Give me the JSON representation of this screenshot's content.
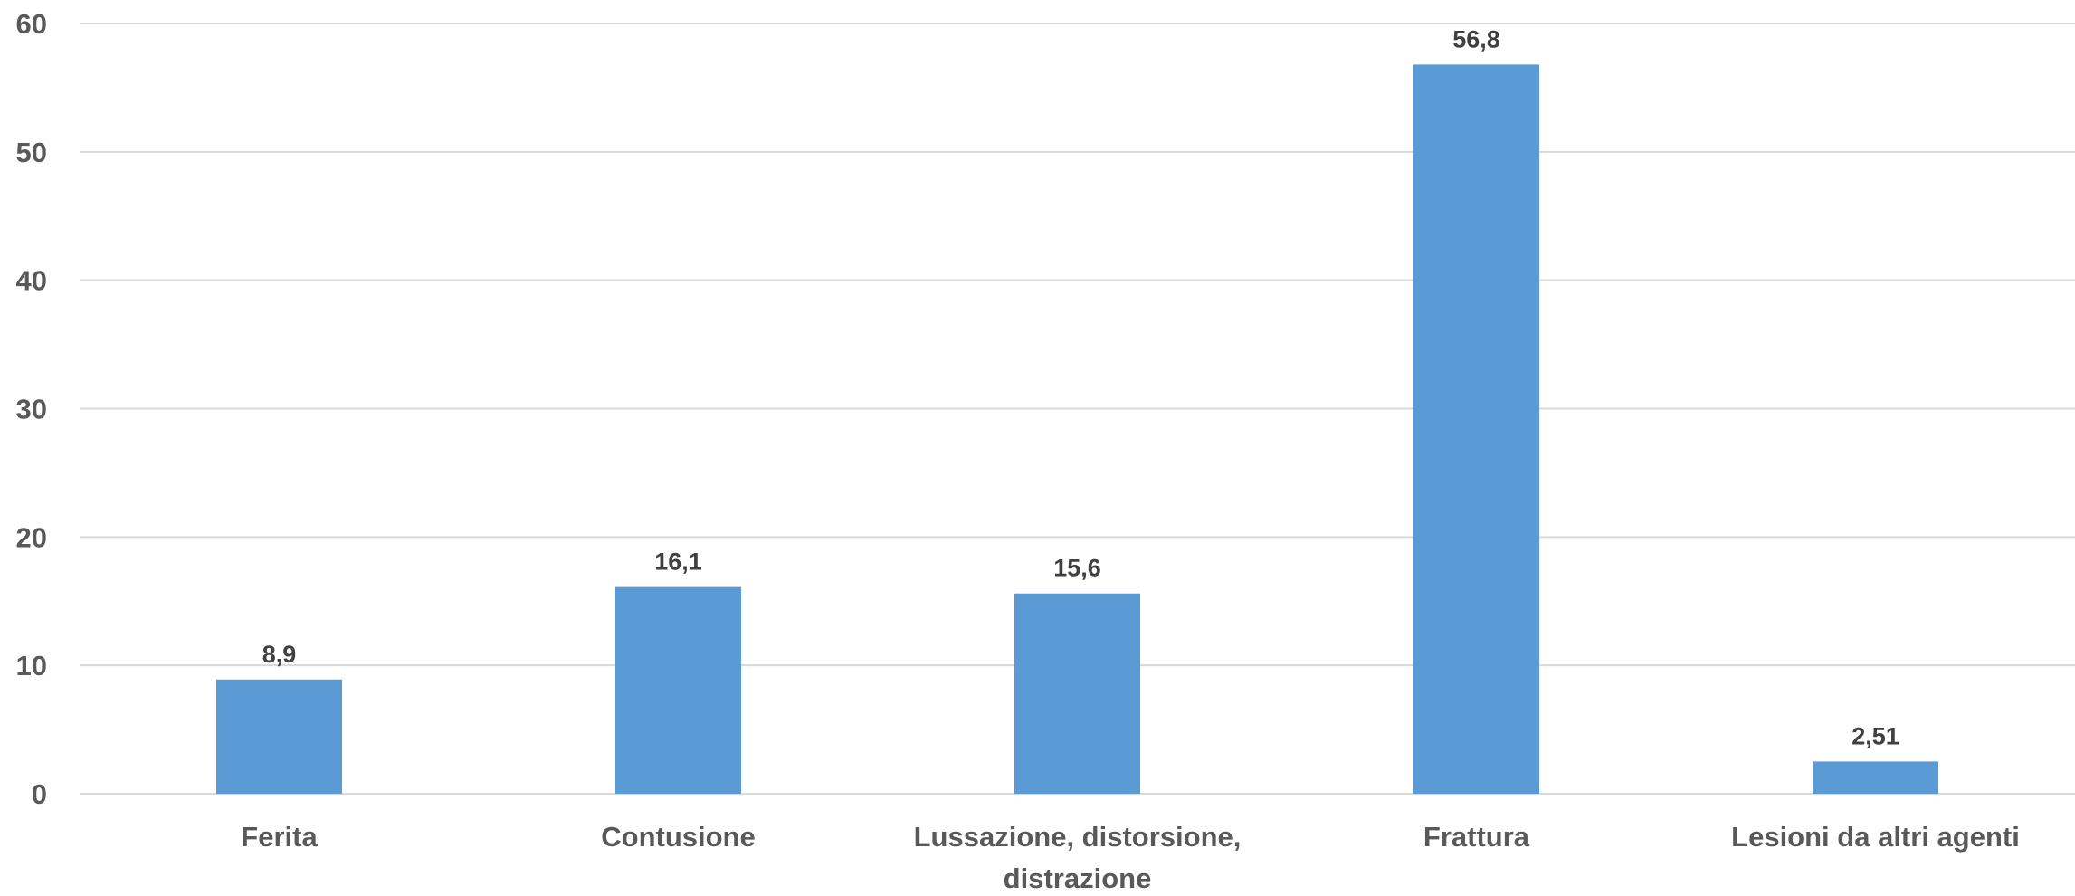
{
  "chart_data": {
    "type": "bar",
    "title": "",
    "xlabel": "",
    "ylabel": "",
    "categories": [
      "Ferita",
      "Contusione",
      "Lussazione, distorsione, distrazione",
      "Frattura",
      "Lesioni da altri agenti"
    ],
    "category_lines": [
      [
        "Ferita"
      ],
      [
        "Contusione"
      ],
      [
        "Lussazione, distorsione,",
        "distrazione"
      ],
      [
        "Frattura"
      ],
      [
        "Lesioni da altri agenti"
      ]
    ],
    "values": [
      8.9,
      16.1,
      15.6,
      56.8,
      2.51
    ],
    "value_labels": [
      "8,9",
      "16,1",
      "15,6",
      "56,8",
      "2,51"
    ],
    "ylim": [
      0,
      60
    ],
    "yticks": [
      0,
      10,
      20,
      30,
      40,
      50,
      60
    ],
    "grid": true,
    "legend": "none",
    "colors": {
      "bar": "#5b9bd5",
      "grid": "#d9d9d9",
      "tick_text": "#595959",
      "label_text": "#404040"
    }
  }
}
